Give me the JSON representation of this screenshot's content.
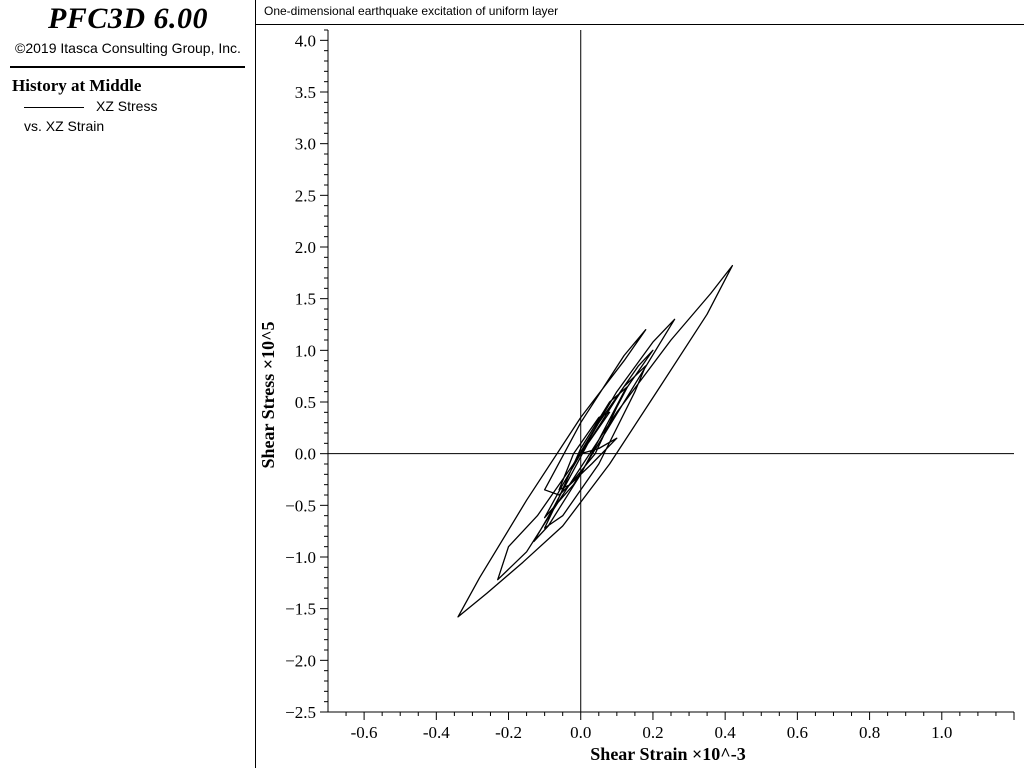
{
  "app": {
    "title": "PFC3D 6.00",
    "copyright": "©2019 Itasca Consulting Group, Inc."
  },
  "legend": {
    "heading": "History at Middle",
    "entry_label": "XZ Stress",
    "entry_sub": "vs. XZ Strain"
  },
  "colors": {
    "line": "#000000",
    "background": "#ffffff"
  },
  "chart_data": {
    "type": "line",
    "title": "One-dimensional earthquake excitation of uniform layer",
    "xlabel": "Shear Strain ×10^-3",
    "ylabel": "Shear Stress ×10^5",
    "xlim": [
      -0.7,
      1.2
    ],
    "ylim": [
      -2.5,
      4.1
    ],
    "xticks": [
      -0.6,
      -0.4,
      -0.2,
      0.0,
      0.2,
      0.4,
      0.6,
      0.8,
      1.0
    ],
    "xtick_labels": [
      "-0.6",
      "-0.4",
      "-0.2",
      "0.0",
      "0.2",
      "0.4",
      "0.6",
      "0.8",
      "1.0"
    ],
    "yticks": [
      -2.5,
      -2.0,
      -1.5,
      -1.0,
      -0.5,
      0.0,
      0.5,
      1.0,
      1.5,
      2.0,
      2.5,
      3.0,
      3.5,
      4.0
    ],
    "ytick_labels": [
      "−2.5",
      "−2.0",
      "−1.5",
      "−1.0",
      "−0.5",
      "0.0",
      "0.5",
      "1.0",
      "1.5",
      "2.0",
      "2.5",
      "3.0",
      "3.5",
      "4.0"
    ],
    "grid": false,
    "legend_position": "left-panel",
    "series": [
      {
        "name": "XZ Stress",
        "x": [
          0.0,
          0.03,
          0.08,
          0.05,
          -0.02,
          -0.06,
          -0.03,
          0.04,
          0.1,
          0.13,
          0.08,
          0.0,
          -0.07,
          -0.1,
          -0.05,
          0.05,
          0.15,
          0.18,
          0.12,
          0.02,
          -0.08,
          -0.13,
          -0.09,
          0.0,
          0.12,
          0.2,
          0.16,
          0.05,
          -0.05,
          -0.1,
          -0.02,
          0.12,
          0.26,
          0.2,
          0.1,
          -0.02,
          -0.12,
          -0.2,
          -0.23,
          -0.15,
          -0.05,
          0.1,
          0.25,
          0.36,
          0.42,
          0.35,
          0.22,
          0.08,
          -0.05,
          -0.16,
          -0.26,
          -0.34,
          -0.28,
          -0.15,
          0.0,
          0.12,
          0.18,
          0.12,
          0.0,
          -0.1,
          -0.06,
          0.03,
          0.1,
          0.05,
          0.0
        ],
        "y": [
          0.0,
          0.15,
          0.4,
          0.35,
          0.0,
          -0.35,
          -0.3,
          0.0,
          0.45,
          0.65,
          0.5,
          0.05,
          -0.5,
          -0.72,
          -0.6,
          -0.1,
          0.6,
          0.85,
          0.65,
          0.1,
          -0.55,
          -0.85,
          -0.7,
          -0.2,
          0.6,
          1.0,
          0.85,
          0.3,
          -0.3,
          -0.62,
          -0.3,
          0.5,
          1.3,
          1.08,
          0.6,
          -0.1,
          -0.6,
          -0.9,
          -1.22,
          -0.95,
          -0.4,
          0.4,
          1.1,
          1.55,
          1.82,
          1.35,
          0.65,
          -0.1,
          -0.7,
          -1.05,
          -1.35,
          -1.58,
          -1.2,
          -0.45,
          0.35,
          0.9,
          1.2,
          0.95,
          0.3,
          -0.35,
          -0.4,
          -0.1,
          0.15,
          0.05,
          0.0
        ]
      }
    ]
  }
}
